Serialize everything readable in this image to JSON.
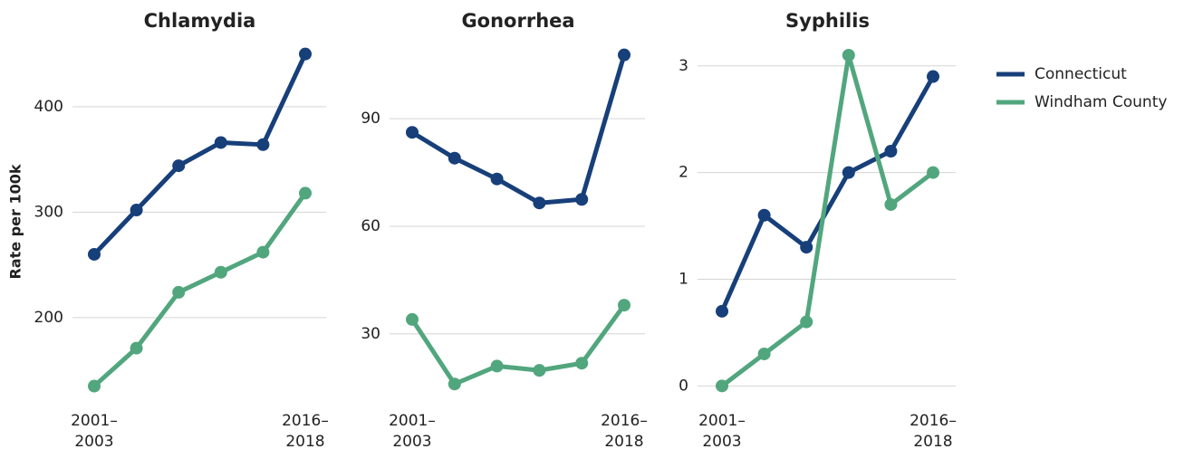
{
  "chart_data": [
    {
      "type": "line",
      "title": "Chlamydia",
      "y_label": "Rate per 100k",
      "categories": [
        "2001–2003",
        null,
        null,
        null,
        null,
        "2016–2018"
      ],
      "series": [
        {
          "name": "Connecticut",
          "color": "#173f7a",
          "values": [
            260,
            302,
            344,
            366,
            364,
            450
          ]
        },
        {
          "name": "Windham County",
          "color": "#52a67d",
          "values": [
            135,
            171,
            224,
            243,
            262,
            318
          ]
        }
      ],
      "ylim": [
        120,
        460
      ],
      "yticks": [
        200,
        300,
        400
      ],
      "grid": true,
      "legend": "right"
    },
    {
      "type": "line",
      "title": "Gonorrhea",
      "categories": [
        "2001–2003",
        null,
        null,
        null,
        null,
        "2016–2018"
      ],
      "series": [
        {
          "name": "Connecticut",
          "color": "#173f7a",
          "values": [
            86.2,
            79,
            73.2,
            66.5,
            67.5,
            107.8
          ]
        },
        {
          "name": "Windham County",
          "color": "#52a67d",
          "values": [
            34,
            16,
            21,
            19.8,
            21.8,
            38
          ]
        }
      ],
      "ylim": [
        11,
        111
      ],
      "yticks": [
        30,
        60,
        90
      ],
      "grid": true
    },
    {
      "type": "line",
      "title": "Syphilis",
      "categories": [
        "2001–2003",
        null,
        null,
        null,
        null,
        "2016–2018"
      ],
      "series": [
        {
          "name": "Connecticut",
          "color": "#173f7a",
          "values": [
            0.7,
            1.6,
            1.3,
            2.0,
            2.2,
            2.9
          ]
        },
        {
          "name": "Windham County",
          "color": "#52a67d",
          "values": [
            0,
            0.3,
            0.6,
            3.1,
            1.7,
            2.0
          ]
        }
      ],
      "ylim": [
        -0.15,
        3.21
      ],
      "yticks": [
        0,
        1,
        2,
        3
      ],
      "grid": true
    }
  ]
}
